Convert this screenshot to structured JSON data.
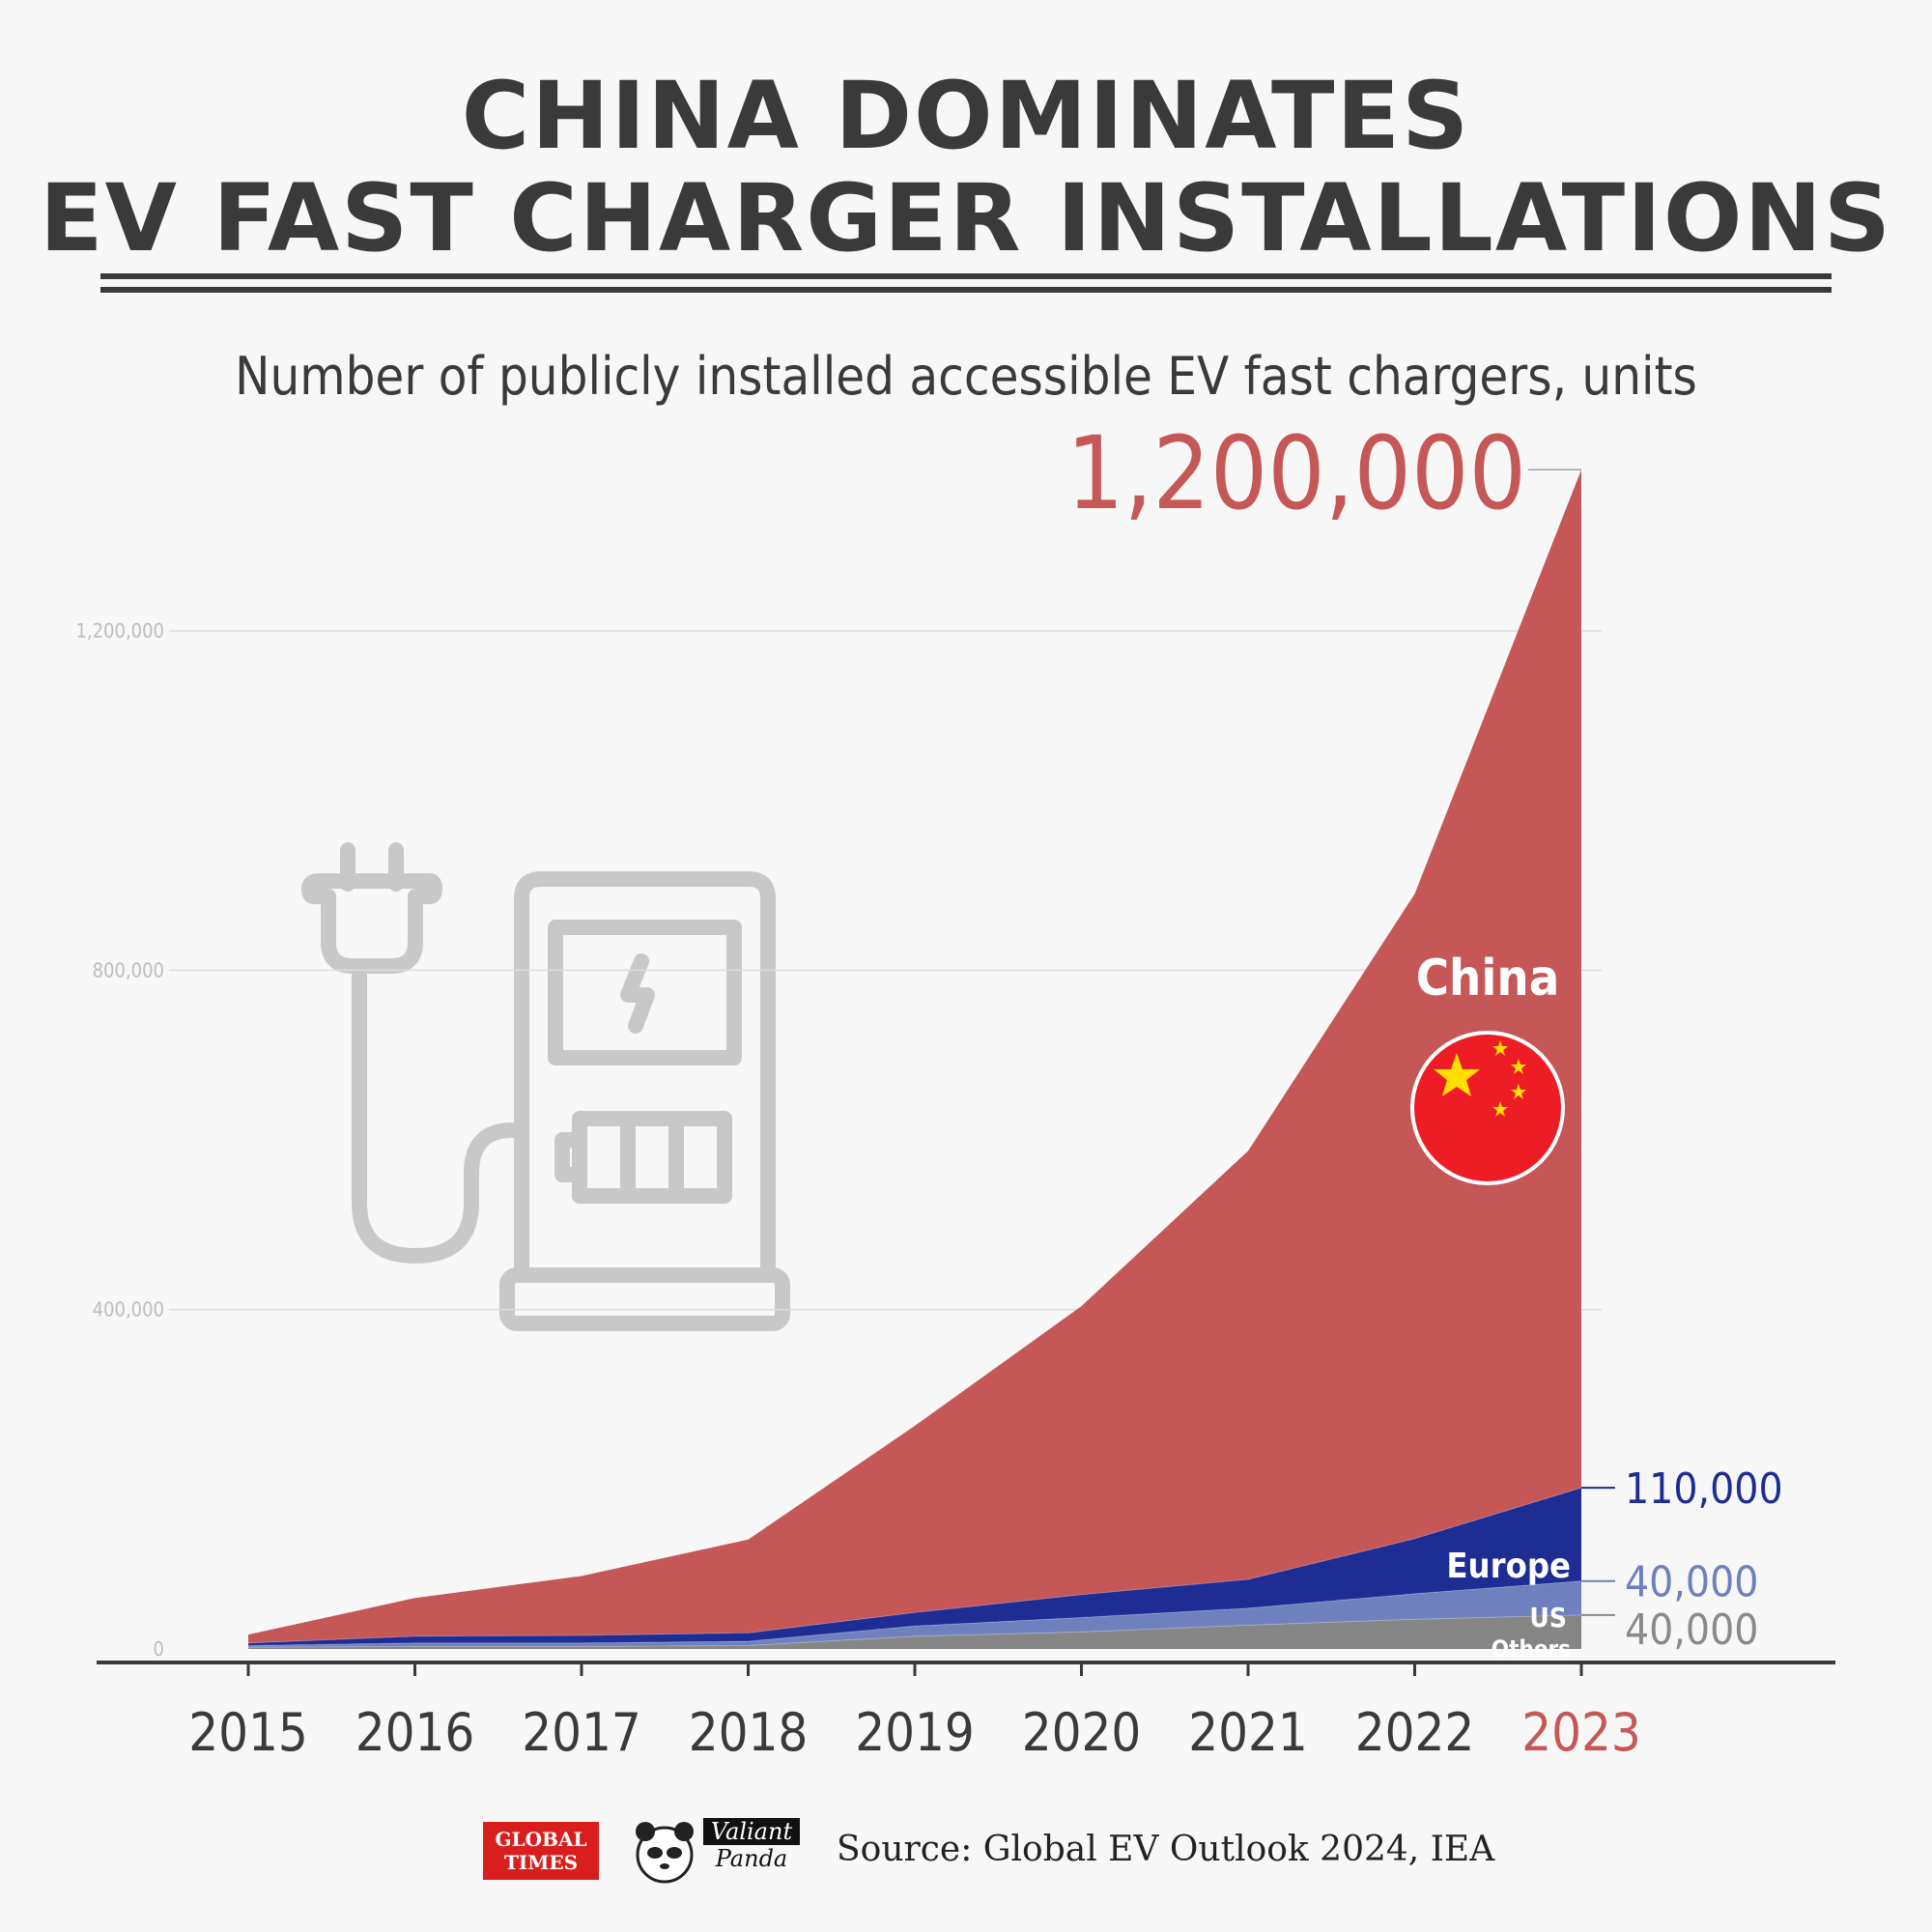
{
  "title": {
    "line1": "CHINA DOMINATES",
    "line2": "EV FAST CHARGER INSTALLATIONS"
  },
  "subtitle": "Number of publicly installed accessible EV fast chargers, units",
  "colors": {
    "china": "#c55757",
    "europe": "#1e2d94",
    "us": "#6f80be",
    "others": "#858585",
    "text_dark": "#3a3a3a",
    "grid": "#dcdcdc",
    "axis_label": "#bdbdbd",
    "icon": "#c8c8c8"
  },
  "chart_data": {
    "type": "area",
    "stacked": true,
    "title": "Number of publicly installed accessible EV fast chargers, units",
    "x": [
      "2015",
      "2016",
      "2017",
      "2018",
      "2019",
      "2020",
      "2021",
      "2022",
      "2023"
    ],
    "highlight_x": "2023",
    "ylim": [
      0,
      1380000
    ],
    "yticks": [
      {
        "value": 0,
        "label": "0"
      },
      {
        "value": 400000,
        "label": "400,000"
      },
      {
        "value": 800000,
        "label": "800,000"
      },
      {
        "value": 1200000,
        "label": "1,200,000"
      }
    ],
    "grid": true,
    "series": [
      {
        "name": "Others",
        "label": "Others",
        "values": [
          2000,
          3000,
          3000,
          4000,
          15000,
          20000,
          28000,
          35000,
          40000
        ],
        "end_label": "40,000"
      },
      {
        "name": "US",
        "label": "US",
        "values": [
          2000,
          4000,
          4000,
          5000,
          12000,
          17000,
          20000,
          30000,
          40000
        ],
        "end_label": "40,000"
      },
      {
        "name": "Europe",
        "label": "Europe",
        "values": [
          3000,
          8000,
          9000,
          10000,
          16000,
          27000,
          34000,
          65000,
          110000
        ],
        "end_label": "110,000"
      },
      {
        "name": "China",
        "label": "China",
        "values": [
          10000,
          45000,
          70000,
          110000,
          220000,
          340000,
          505000,
          760000,
          1200000
        ],
        "end_label": "1,200,000"
      }
    ]
  },
  "footer": {
    "logo_global_times_1": "GLOBAL",
    "logo_global_times_2": "TIMES",
    "logo_valiant": "Valiant",
    "logo_panda": "Panda",
    "source": "Source: Global EV Outlook 2024, IEA"
  }
}
